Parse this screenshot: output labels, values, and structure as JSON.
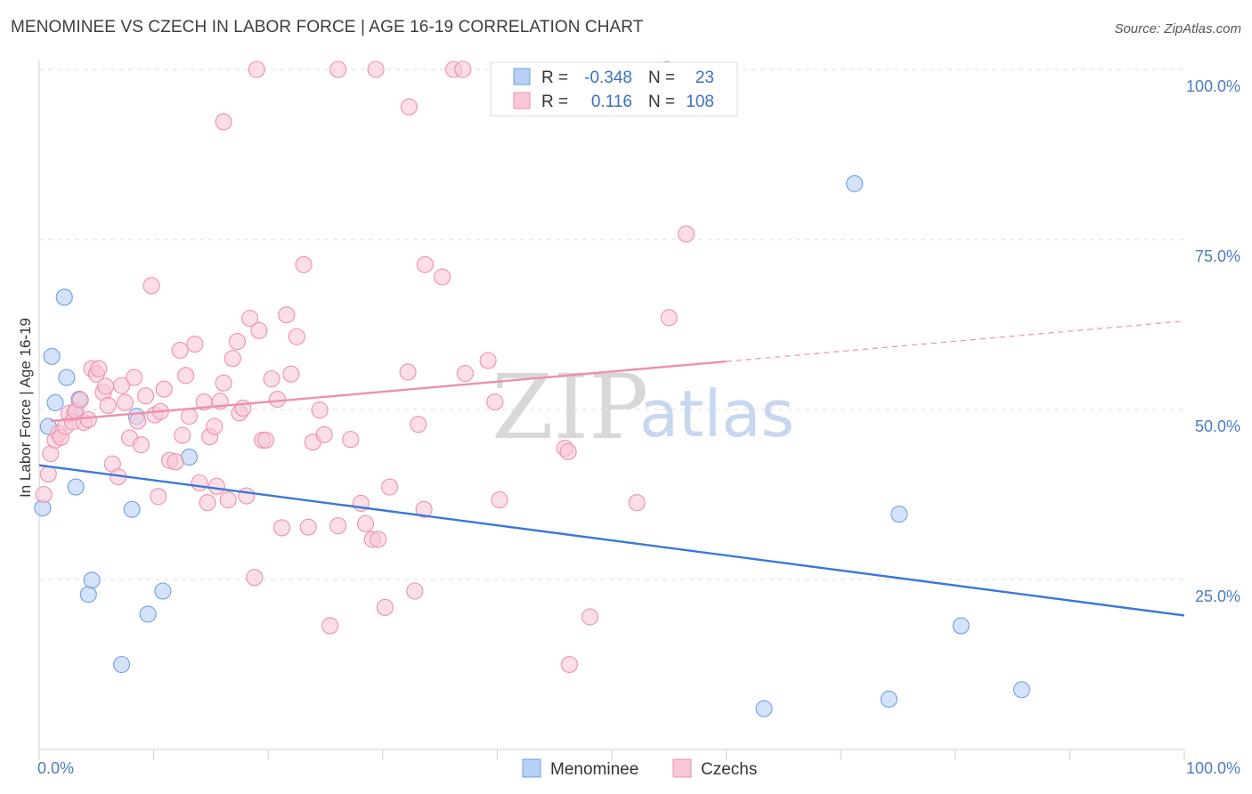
{
  "header": {
    "title": "MENOMINEE VS CZECH IN LABOR FORCE | AGE 16-19 CORRELATION CHART",
    "source": "Source: ZipAtlas.com"
  },
  "watermark": {
    "zip": "ZIP",
    "atlas": "atlas"
  },
  "legend": {
    "r_label": "R =",
    "n_label": "N =",
    "rows": [
      {
        "r": "-0.348",
        "n": "23",
        "color": "#9dbdf2"
      },
      {
        "r": "0.116",
        "n": "108",
        "color": "#f5b6c9"
      }
    ]
  },
  "chart_data": {
    "type": "scatter",
    "title": "MENOMINEE VS CZECH IN LABOR FORCE | AGE 16-19 CORRELATION CHART",
    "xlabel": "",
    "ylabel": "In Labor Force | Age 16-19",
    "xlim": [
      0,
      100
    ],
    "ylim": [
      0,
      100
    ],
    "x_tick_labels": [
      "0.0%",
      "100.0%"
    ],
    "y_ticks": [
      25,
      50,
      75,
      100
    ],
    "y_tick_labels": [
      "25.0%",
      "50.0%",
      "75.0%",
      "100.0%"
    ],
    "grid": true,
    "legend_position": "top-center",
    "series": [
      {
        "name": "Menominee",
        "color": "#6e9fe6",
        "fill": "#b8d0f5",
        "trend": {
          "x0": 0,
          "y0": 41.8,
          "x1": 100,
          "y1": 19.7,
          "dashed_from": null
        },
        "points": [
          [
            0.3,
            35.5
          ],
          [
            0.8,
            47.5
          ],
          [
            1.1,
            57.8
          ],
          [
            1.4,
            51
          ],
          [
            2.2,
            66.5
          ],
          [
            2.4,
            54.7
          ],
          [
            3.2,
            38.6
          ],
          [
            3.5,
            51.5
          ],
          [
            4.3,
            22.8
          ],
          [
            4.6,
            24.9
          ],
          [
            7.2,
            12.5
          ],
          [
            8.1,
            35.3
          ],
          [
            8.5,
            49
          ],
          [
            9.5,
            19.9
          ],
          [
            10.8,
            23.3
          ],
          [
            13.1,
            43
          ],
          [
            71.2,
            83.2
          ],
          [
            75.1,
            34.6
          ],
          [
            63.3,
            6
          ],
          [
            74.2,
            7.4
          ],
          [
            80.5,
            18.2
          ],
          [
            85.8,
            8.8
          ],
          [
            3.1,
            49.5
          ]
        ]
      },
      {
        "name": "Czechs",
        "color": "#ee8fab",
        "fill": "#f8c8d6",
        "trend": {
          "x0": 1,
          "y0": 48.3,
          "x1": 100,
          "y1": 63,
          "dashed_from": 60
        },
        "points": [
          [
            0.4,
            37.5
          ],
          [
            0.8,
            40.5
          ],
          [
            1,
            43.5
          ],
          [
            1.4,
            45.5
          ],
          [
            1.7,
            46.5
          ],
          [
            1.9,
            45.9
          ],
          [
            2.3,
            47.5
          ],
          [
            2.6,
            49.4
          ],
          [
            2.9,
            48.2
          ],
          [
            3.2,
            49.8
          ],
          [
            3.6,
            51.4
          ],
          [
            3.9,
            48.1
          ],
          [
            4.3,
            48.5
          ],
          [
            4.6,
            56
          ],
          [
            5,
            55.2
          ],
          [
            5.2,
            56
          ],
          [
            5.6,
            52.5
          ],
          [
            5.8,
            53.4
          ],
          [
            6,
            50.6
          ],
          [
            6.4,
            42
          ],
          [
            6.9,
            40.1
          ],
          [
            7.2,
            53.5
          ],
          [
            7.5,
            51
          ],
          [
            7.9,
            45.8
          ],
          [
            8.3,
            54.7
          ],
          [
            8.6,
            48.3
          ],
          [
            8.9,
            44.8
          ],
          [
            9.3,
            52
          ],
          [
            9.8,
            68.2
          ],
          [
            10.1,
            49.2
          ],
          [
            10.4,
            37.2
          ],
          [
            10.6,
            49.7
          ],
          [
            10.9,
            53
          ],
          [
            11.4,
            42.5
          ],
          [
            11.9,
            42.3
          ],
          [
            12.3,
            58.7
          ],
          [
            12.5,
            46.2
          ],
          [
            12.8,
            55
          ],
          [
            13.1,
            49
          ],
          [
            13.6,
            59.6
          ],
          [
            14,
            39.2
          ],
          [
            14.4,
            51.1
          ],
          [
            14.7,
            36.3
          ],
          [
            14.9,
            46
          ],
          [
            15.3,
            47.5
          ],
          [
            15.5,
            38.7
          ],
          [
            15.8,
            51.2
          ],
          [
            16.1,
            53.9
          ],
          [
            16.5,
            36.7
          ],
          [
            16.9,
            57.5
          ],
          [
            17.3,
            60
          ],
          [
            17.5,
            49.5
          ],
          [
            17.8,
            50.2
          ],
          [
            18.1,
            37.3
          ],
          [
            18.4,
            63.4
          ],
          [
            18.8,
            25.3
          ],
          [
            19.2,
            61.6
          ],
          [
            19.5,
            45.5
          ],
          [
            19.8,
            45.5
          ],
          [
            20.3,
            54.5
          ],
          [
            20.8,
            51.5
          ],
          [
            21.2,
            32.6
          ],
          [
            21.6,
            63.9
          ],
          [
            22,
            55.2
          ],
          [
            22.5,
            60.7
          ],
          [
            23.1,
            71.3
          ],
          [
            23.5,
            32.7
          ],
          [
            23.9,
            45.2
          ],
          [
            24.5,
            49.9
          ],
          [
            24.9,
            46.3
          ],
          [
            25.4,
            18.2
          ],
          [
            26.1,
            32.9
          ],
          [
            27.2,
            45.6
          ],
          [
            28.1,
            36.2
          ],
          [
            28.5,
            33.2
          ],
          [
            29.1,
            30.9
          ],
          [
            29.6,
            30.9
          ],
          [
            30.2,
            20.9
          ],
          [
            30.6,
            38.6
          ],
          [
            32.2,
            55.5
          ],
          [
            32.8,
            23.3
          ],
          [
            33.1,
            47.8
          ],
          [
            33.6,
            35.3
          ],
          [
            33.7,
            71.3
          ],
          [
            35.2,
            69.5
          ],
          [
            37.2,
            55.3
          ],
          [
            39.2,
            57.2
          ],
          [
            39.8,
            51.1
          ],
          [
            40.2,
            36.7
          ],
          [
            45.9,
            44.3
          ],
          [
            46.2,
            43.8
          ],
          [
            46.3,
            12.5
          ],
          [
            48.1,
            19.5
          ],
          [
            52.2,
            36.3
          ],
          [
            55,
            63.5
          ],
          [
            56.5,
            75.8
          ],
          [
            19,
            100
          ],
          [
            26.1,
            100
          ],
          [
            29.4,
            100
          ],
          [
            32.3,
            94.5
          ],
          [
            36.2,
            100
          ],
          [
            37,
            100
          ],
          [
            54.8,
            100
          ],
          [
            16.1,
            92.3
          ]
        ]
      }
    ]
  },
  "bottom_legend": [
    {
      "label": "Menominee",
      "color": "#b8d0f5",
      "stroke": "#6e9fe6"
    },
    {
      "label": "Czechs",
      "color": "#f8c8d6",
      "stroke": "#ee8fab"
    }
  ]
}
